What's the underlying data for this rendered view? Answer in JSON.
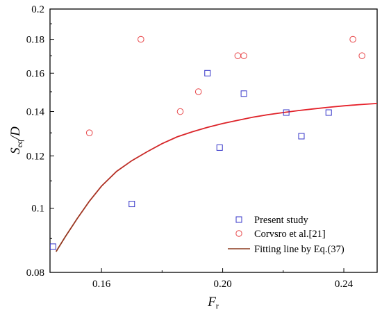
{
  "chart_data": {
    "type": "scatter",
    "xlabel": "F",
    "xlabel_sub": "r",
    "ylabel": "S",
    "ylabel_sub": "eq",
    "ylabel_suffix": "/D",
    "xlim": [
      0.143,
      0.251
    ],
    "ylim": [
      0.08,
      0.2
    ],
    "y_scale": "log",
    "x_ticks": [
      0.16,
      0.2,
      0.24
    ],
    "x_tick_labels": [
      "0.16",
      "0.20",
      "0.24"
    ],
    "y_ticks": [
      0.08,
      0.1,
      0.12,
      0.14,
      0.16,
      0.18,
      0.2
    ],
    "y_tick_labels": [
      "0.08",
      "0.1",
      "0.12",
      "0.14",
      "0.16",
      "0.18",
      "0.2"
    ],
    "legend_position": "bottom-right",
    "series": [
      {
        "name": "Present study",
        "marker": "square",
        "color": "#3535c8",
        "points": [
          [
            0.144,
            0.0875
          ],
          [
            0.17,
            0.1015
          ],
          [
            0.195,
            0.16
          ],
          [
            0.199,
            0.1235
          ],
          [
            0.207,
            0.149
          ],
          [
            0.221,
            0.1395
          ],
          [
            0.226,
            0.1285
          ],
          [
            0.235,
            0.1395
          ]
        ]
      },
      {
        "name": "Corvsro et al.[21]",
        "marker": "circle",
        "color": "#e8484b",
        "points": [
          [
            0.156,
            0.13
          ],
          [
            0.173,
            0.18
          ],
          [
            0.186,
            0.14
          ],
          [
            0.192,
            0.15
          ],
          [
            0.205,
            0.17
          ],
          [
            0.207,
            0.17
          ],
          [
            0.243,
            0.18
          ],
          [
            0.246,
            0.17
          ]
        ]
      },
      {
        "name": "Fitting line by Eq.(37)",
        "marker": "line",
        "color": "#8b3a1e",
        "gradient_color": "#e8202a",
        "points": [
          [
            0.145,
            0.086
          ],
          [
            0.148,
            0.0905
          ],
          [
            0.152,
            0.0965
          ],
          [
            0.156,
            0.1025
          ],
          [
            0.16,
            0.108
          ],
          [
            0.165,
            0.1137
          ],
          [
            0.17,
            0.118
          ],
          [
            0.175,
            0.1217
          ],
          [
            0.18,
            0.1252
          ],
          [
            0.185,
            0.1282
          ],
          [
            0.19,
            0.1305
          ],
          [
            0.195,
            0.1325
          ],
          [
            0.2,
            0.1343
          ],
          [
            0.205,
            0.1358
          ],
          [
            0.21,
            0.1373
          ],
          [
            0.215,
            0.1385
          ],
          [
            0.22,
            0.1395
          ],
          [
            0.225,
            0.1405
          ],
          [
            0.23,
            0.1413
          ],
          [
            0.235,
            0.1421
          ],
          [
            0.24,
            0.1428
          ],
          [
            0.245,
            0.1434
          ],
          [
            0.251,
            0.144
          ]
        ]
      }
    ]
  }
}
